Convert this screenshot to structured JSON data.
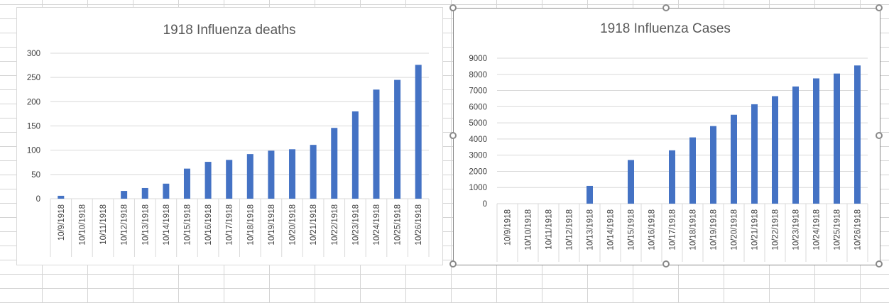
{
  "colors": {
    "bar": "#4472C4",
    "gridline": "#d9d9d9",
    "axis_text": "#404040",
    "title_text": "#595959",
    "selection_handle": "#8a8a8a"
  },
  "chart_data": [
    {
      "type": "bar",
      "title": "1918 Influenza deaths",
      "categories": [
        "10/9/1918",
        "10/10/1918",
        "10/11/1918",
        "10/12/1918",
        "10/13/1918",
        "10/14/1918",
        "10/15/1918",
        "10/16/1918",
        "10/17/1918",
        "10/18/1918",
        "10/19/1918",
        "10/20/1918",
        "10/21/1918",
        "10/22/1918",
        "10/23/1918",
        "10/24/1918",
        "10/25/1918",
        "10/26/1918"
      ],
      "values": [
        6,
        0,
        0,
        16,
        22,
        31,
        62,
        76,
        80,
        92,
        99,
        102,
        111,
        146,
        180,
        225,
        245,
        276
      ],
      "ylim": [
        0,
        300
      ],
      "yticks": [
        "0",
        "50",
        "100",
        "150",
        "200",
        "250",
        "300"
      ],
      "xlabel": "",
      "ylabel": "",
      "grid": true,
      "legend": "none",
      "selected": false
    },
    {
      "type": "bar",
      "title": "1918 Influenza Cases",
      "categories": [
        "10/9/1918",
        "10/10/1918",
        "10/11/1918",
        "10/12/1918",
        "10/13/1918",
        "10/14/1918",
        "10/15/1918",
        "10/16/1918",
        "10/17/1918",
        "10/18/1918",
        "10/19/1918",
        "10/20/1918",
        "10/21/1918",
        "10/22/1918",
        "10/23/1918",
        "10/24/1918",
        "10/25/1918",
        "10/26/1918"
      ],
      "values": [
        0,
        0,
        0,
        0,
        1100,
        0,
        2700,
        0,
        3300,
        4100,
        4800,
        5500,
        6150,
        6650,
        7250,
        7750,
        8050,
        8550
      ],
      "ylim": [
        0,
        9000
      ],
      "yticks": [
        "0",
        "1000",
        "2000",
        "3000",
        "4000",
        "5000",
        "6000",
        "7000",
        "8000",
        "9000"
      ],
      "xlabel": "",
      "ylabel": "",
      "grid": true,
      "legend": "none",
      "selected": true
    }
  ]
}
